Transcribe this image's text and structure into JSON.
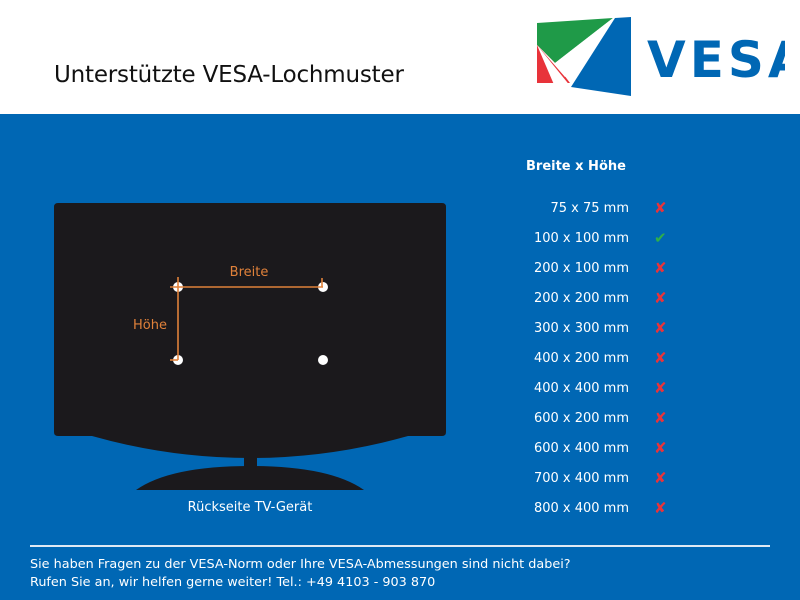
{
  "header": {
    "title": "Unterstützte VESA-Lochmuster",
    "logo_text": "VESA",
    "logo_colors": {
      "green": "#1f9a48",
      "red": "#e8333a",
      "blue": "#0067b4"
    }
  },
  "tv": {
    "width_label": "Breite",
    "height_label": "Höhe",
    "caption": "Rückseite TV-Gerät",
    "accent": "#e0813a"
  },
  "list": {
    "header": "Breite x Höhe",
    "items": [
      {
        "size": "75 x 75 mm",
        "supported": false,
        "icon": "cross-icon"
      },
      {
        "size": "100 x 100 mm",
        "supported": true,
        "icon": "check-icon"
      },
      {
        "size": "200 x 100 mm",
        "supported": false,
        "icon": "cross-icon"
      },
      {
        "size": "200 x 200 mm",
        "supported": false,
        "icon": "cross-icon"
      },
      {
        "size": "300 x 300 mm",
        "supported": false,
        "icon": "cross-icon"
      },
      {
        "size": "400 x 200 mm",
        "supported": false,
        "icon": "cross-icon"
      },
      {
        "size": "400 x 400 mm",
        "supported": false,
        "icon": "cross-icon"
      },
      {
        "size": "600 x 200 mm",
        "supported": false,
        "icon": "cross-icon"
      },
      {
        "size": "600 x 400 mm",
        "supported": false,
        "icon": "cross-icon"
      },
      {
        "size": "700 x 400 mm",
        "supported": false,
        "icon": "cross-icon"
      },
      {
        "size": "800 x 400 mm",
        "supported": false,
        "icon": "cross-icon"
      }
    ]
  },
  "footer": {
    "line1": "Sie haben Fragen zu der VESA-Norm oder Ihre VESA-Abmessungen sind nicht dabei?",
    "line2": "Rufen Sie an, wir helfen gerne weiter! Tel.: +49 4103 - 903 870"
  }
}
